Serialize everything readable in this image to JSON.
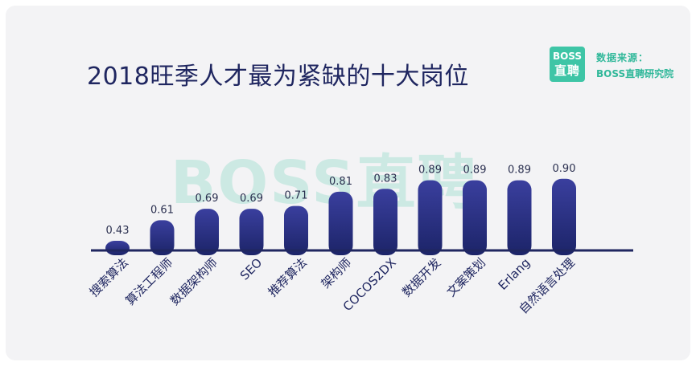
{
  "header": {
    "title": "2018旺季人才最为紧缺的十大岗位"
  },
  "brand": {
    "logo_line1": "BOSS",
    "logo_line2": "直聘",
    "source_label": "数据来源：",
    "source_name": "BOSS直聘研究院",
    "watermark": "BOSS直聘",
    "color": "#3ec5a6"
  },
  "chart_data": {
    "type": "bar",
    "title": "2018旺季人才最为紧缺的十大岗位",
    "xlabel": "",
    "ylabel": "",
    "categories": [
      "搜索算法",
      "算法工程师",
      "数据架构师",
      "SEO",
      "推荐算法",
      "架构师",
      "COCOS2DX",
      "数据开发",
      "文案策划",
      "Erlang",
      "自然语言处理"
    ],
    "values": [
      0.43,
      0.61,
      0.69,
      0.69,
      0.71,
      0.81,
      0.83,
      0.89,
      0.89,
      0.89,
      0.9
    ],
    "value_labels": [
      "0.43",
      "0.61",
      "0.69",
      "0.69",
      "0.71",
      "0.81",
      "0.83",
      "0.89",
      "0.89",
      "0.89",
      "0.90"
    ],
    "grid": false,
    "legend": "none",
    "bar_color_top": "#3a3f9e",
    "bar_color_bottom": "#1c2468",
    "axis_color": "#1f2660"
  }
}
